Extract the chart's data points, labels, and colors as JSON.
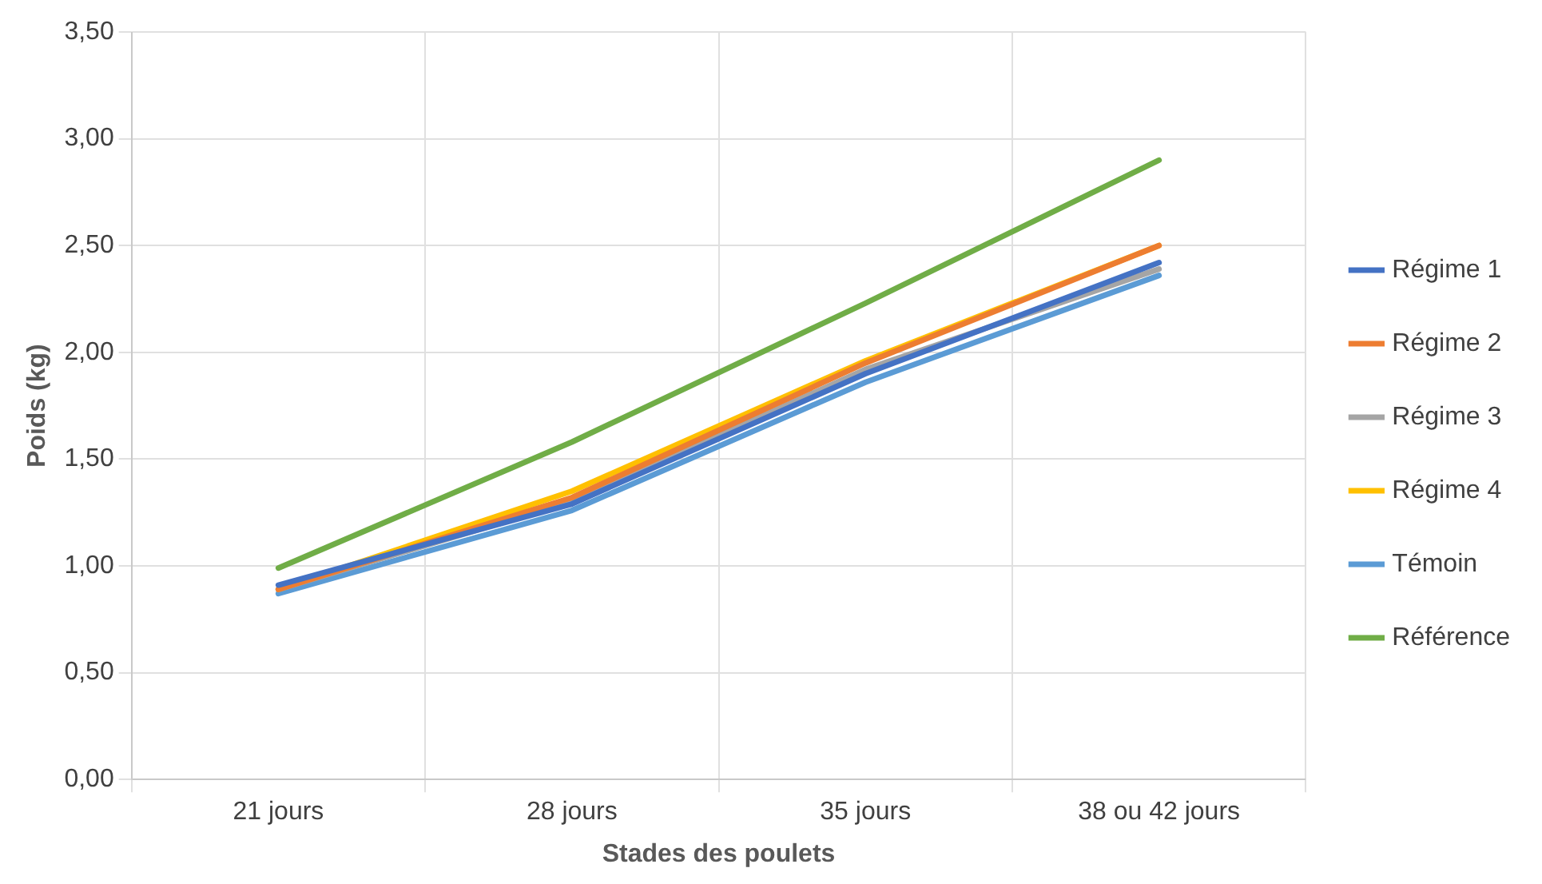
{
  "chart_data": {
    "type": "line",
    "xlabel": "Stades des poulets",
    "ylabel": "Poids (kg)",
    "categories": [
      "21 jours",
      "28 jours",
      "35 jours",
      "38 ou 42 jours"
    ],
    "series": [
      {
        "name": "Régime 1",
        "color": "#4472c4",
        "values": [
          0.91,
          1.29,
          1.9,
          2.42
        ]
      },
      {
        "name": "Régime 2",
        "color": "#ed7d31",
        "values": [
          0.89,
          1.32,
          1.95,
          2.5
        ]
      },
      {
        "name": "Régime 3",
        "color": "#a5a5a5",
        "values": [
          0.89,
          1.3,
          1.92,
          2.39
        ]
      },
      {
        "name": "Régime 4",
        "color": "#ffc000",
        "values": [
          0.89,
          1.35,
          1.96,
          2.5
        ]
      },
      {
        "name": "Témoin",
        "color": "#5b9bd5",
        "values": [
          0.87,
          1.26,
          1.86,
          2.36
        ]
      },
      {
        "name": "Référence",
        "color": "#70ad47",
        "values": [
          0.99,
          1.58,
          2.23,
          2.9
        ]
      }
    ],
    "ylim": [
      0,
      3.5
    ],
    "yticks": [
      {
        "value": 0,
        "label": "0,00"
      },
      {
        "value": 0.5,
        "label": "0,50"
      },
      {
        "value": 1,
        "label": "1,00"
      },
      {
        "value": 1.5,
        "label": "1,50"
      },
      {
        "value": 2,
        "label": "2,00"
      },
      {
        "value": 2.5,
        "label": "2,50"
      },
      {
        "value": 3,
        "label": "3,00"
      },
      {
        "value": 3.5,
        "label": "3,50"
      }
    ],
    "grid": true,
    "legend": "right",
    "marker": "none",
    "line_style": "solid"
  }
}
